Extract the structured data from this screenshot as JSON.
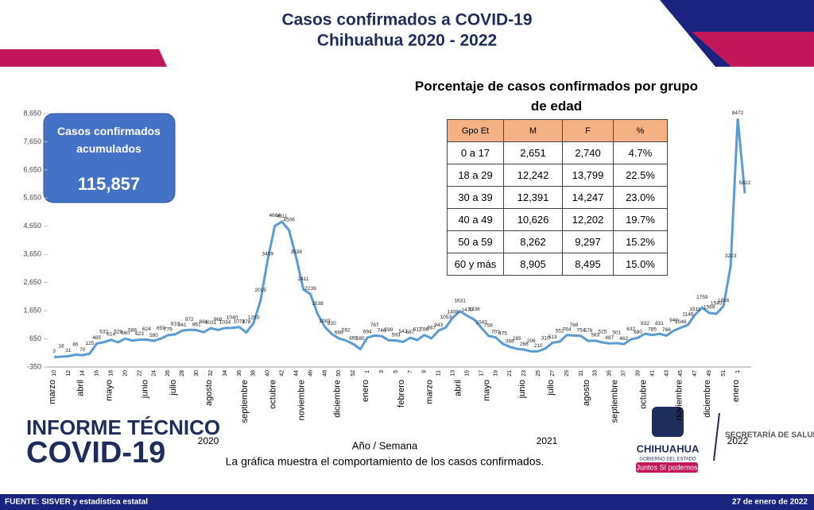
{
  "header": {
    "title": "Casos confirmados a COVID-19",
    "subtitle": "Chihuahua 2020 - 2022"
  },
  "summary": {
    "label": "Casos confirmados acumulados",
    "value": "115,857"
  },
  "chart_data": {
    "type": "line",
    "color": "#5b9bd5",
    "categories": [
      "10",
      null,
      "12",
      null,
      "14",
      null,
      "16",
      null,
      "18",
      null,
      "20",
      null,
      "22",
      null,
      "24",
      null,
      "26",
      null,
      "28",
      null,
      "30",
      null,
      "32",
      null,
      "34",
      null,
      "36",
      null,
      "38",
      null,
      "40",
      null,
      "42",
      null,
      "44",
      null,
      "46",
      null,
      "48",
      null,
      "50",
      null,
      "52",
      null,
      "1",
      null,
      "3",
      null,
      "5",
      null,
      "7",
      null,
      "9",
      null,
      "11",
      null,
      "13",
      null,
      "15",
      null,
      "17",
      null,
      "19",
      null,
      "21",
      null,
      "23",
      null,
      "25",
      null,
      "27",
      null,
      "29",
      null,
      "31",
      null,
      "33",
      null,
      "35",
      null,
      "37",
      null,
      "39",
      null,
      "41",
      null,
      "43",
      null,
      "45",
      null,
      "47",
      null,
      "49",
      null,
      "51",
      null,
      "1",
      null
    ],
    "values": [
      3,
      16,
      31,
      86,
      70,
      125,
      485,
      532,
      614,
      528,
      660,
      588,
      623,
      624,
      580,
      659,
      779,
      810,
      941,
      972,
      961,
      884,
      1031,
      968,
      1034,
      1040,
      1071,
      878,
      1203,
      2015,
      3459,
      4664,
      4811,
      4506,
      3538,
      2411,
      2239,
      1538,
      1083,
      820,
      666,
      592,
      469,
      285,
      694,
      767,
      746,
      599,
      593,
      542,
      687,
      611,
      786,
      667,
      943,
      1053,
      1408,
      1631,
      1470,
      1336,
      1043,
      758,
      703,
      475,
      368,
      295,
      266,
      206,
      210,
      310,
      513,
      552,
      784,
      768,
      754,
      576,
      583,
      525,
      487,
      501,
      462,
      632,
      690,
      832,
      785,
      831,
      766,
      940,
      1046,
      1146,
      1511,
      1759,
      1569,
      1540,
      1816,
      3223,
      8472,
      5822
    ],
    "months": [
      "marzo",
      "abril",
      "mayo",
      "junio",
      "julio",
      "agosto",
      "septiembre",
      "octubre",
      "noviembre",
      "diciembre",
      "enero",
      "febrero",
      "marzo",
      "abril",
      "mayo",
      "junio",
      "julio",
      "agosto",
      "septiembre",
      "octubre",
      "noviembre",
      "diciembre",
      "enero"
    ],
    "years": [
      "2020",
      "2021",
      "2022"
    ],
    "xlabel": "Año / Semana",
    "ylim": [
      -350,
      8650
    ],
    "yticks": [
      -350,
      650,
      {
        "value": 1650,
        "label": "1,650"
      },
      {
        "value": 2650,
        "label": "2,650"
      },
      {
        "value": 3650,
        "label": "3,650"
      },
      {
        "value": 4650,
        "label": "4,650"
      },
      {
        "value": 5650,
        "label": "5,650"
      },
      {
        "value": 6650,
        "label": "6,650"
      },
      {
        "value": 7650,
        "label": "7,650"
      },
      {
        "value": 8650,
        "label": "8,650"
      }
    ]
  },
  "table": {
    "title": "Porcentaje de casos confirmados por grupo de edad",
    "header": [
      "Gpo Et",
      "M",
      "F",
      "%"
    ],
    "rows": [
      [
        "0 a 17",
        "2,651",
        "2,740",
        "4.7%"
      ],
      [
        "18 a 29",
        "12,242",
        "13,799",
        "22.5%"
      ],
      [
        "30 a 39",
        "12,391",
        "14,247",
        "23.0%"
      ],
      [
        "40 a 49",
        "10,626",
        "12,202",
        "19.7%"
      ],
      [
        "50 a 59",
        "8,262",
        "9,297",
        "15.2%"
      ],
      [
        "60 y más",
        "8,905",
        "8,495",
        "15.0%"
      ]
    ]
  },
  "caption": "La gráfica muestra el comportamiento de los casos confirmados.",
  "brand": {
    "report": "INFORME TÉCNICO",
    "covid": "COVID-19",
    "state": "CHIHUAHUA",
    "gov": "GOBIERNO DEL ESTADO",
    "slogan": "Juntos Sí podemos",
    "dept": "SECRETARÍA DE SALUD"
  },
  "footer": {
    "source": "FUENTE: SISVER y estadística estatal",
    "date": "27 de enero de 2022"
  }
}
